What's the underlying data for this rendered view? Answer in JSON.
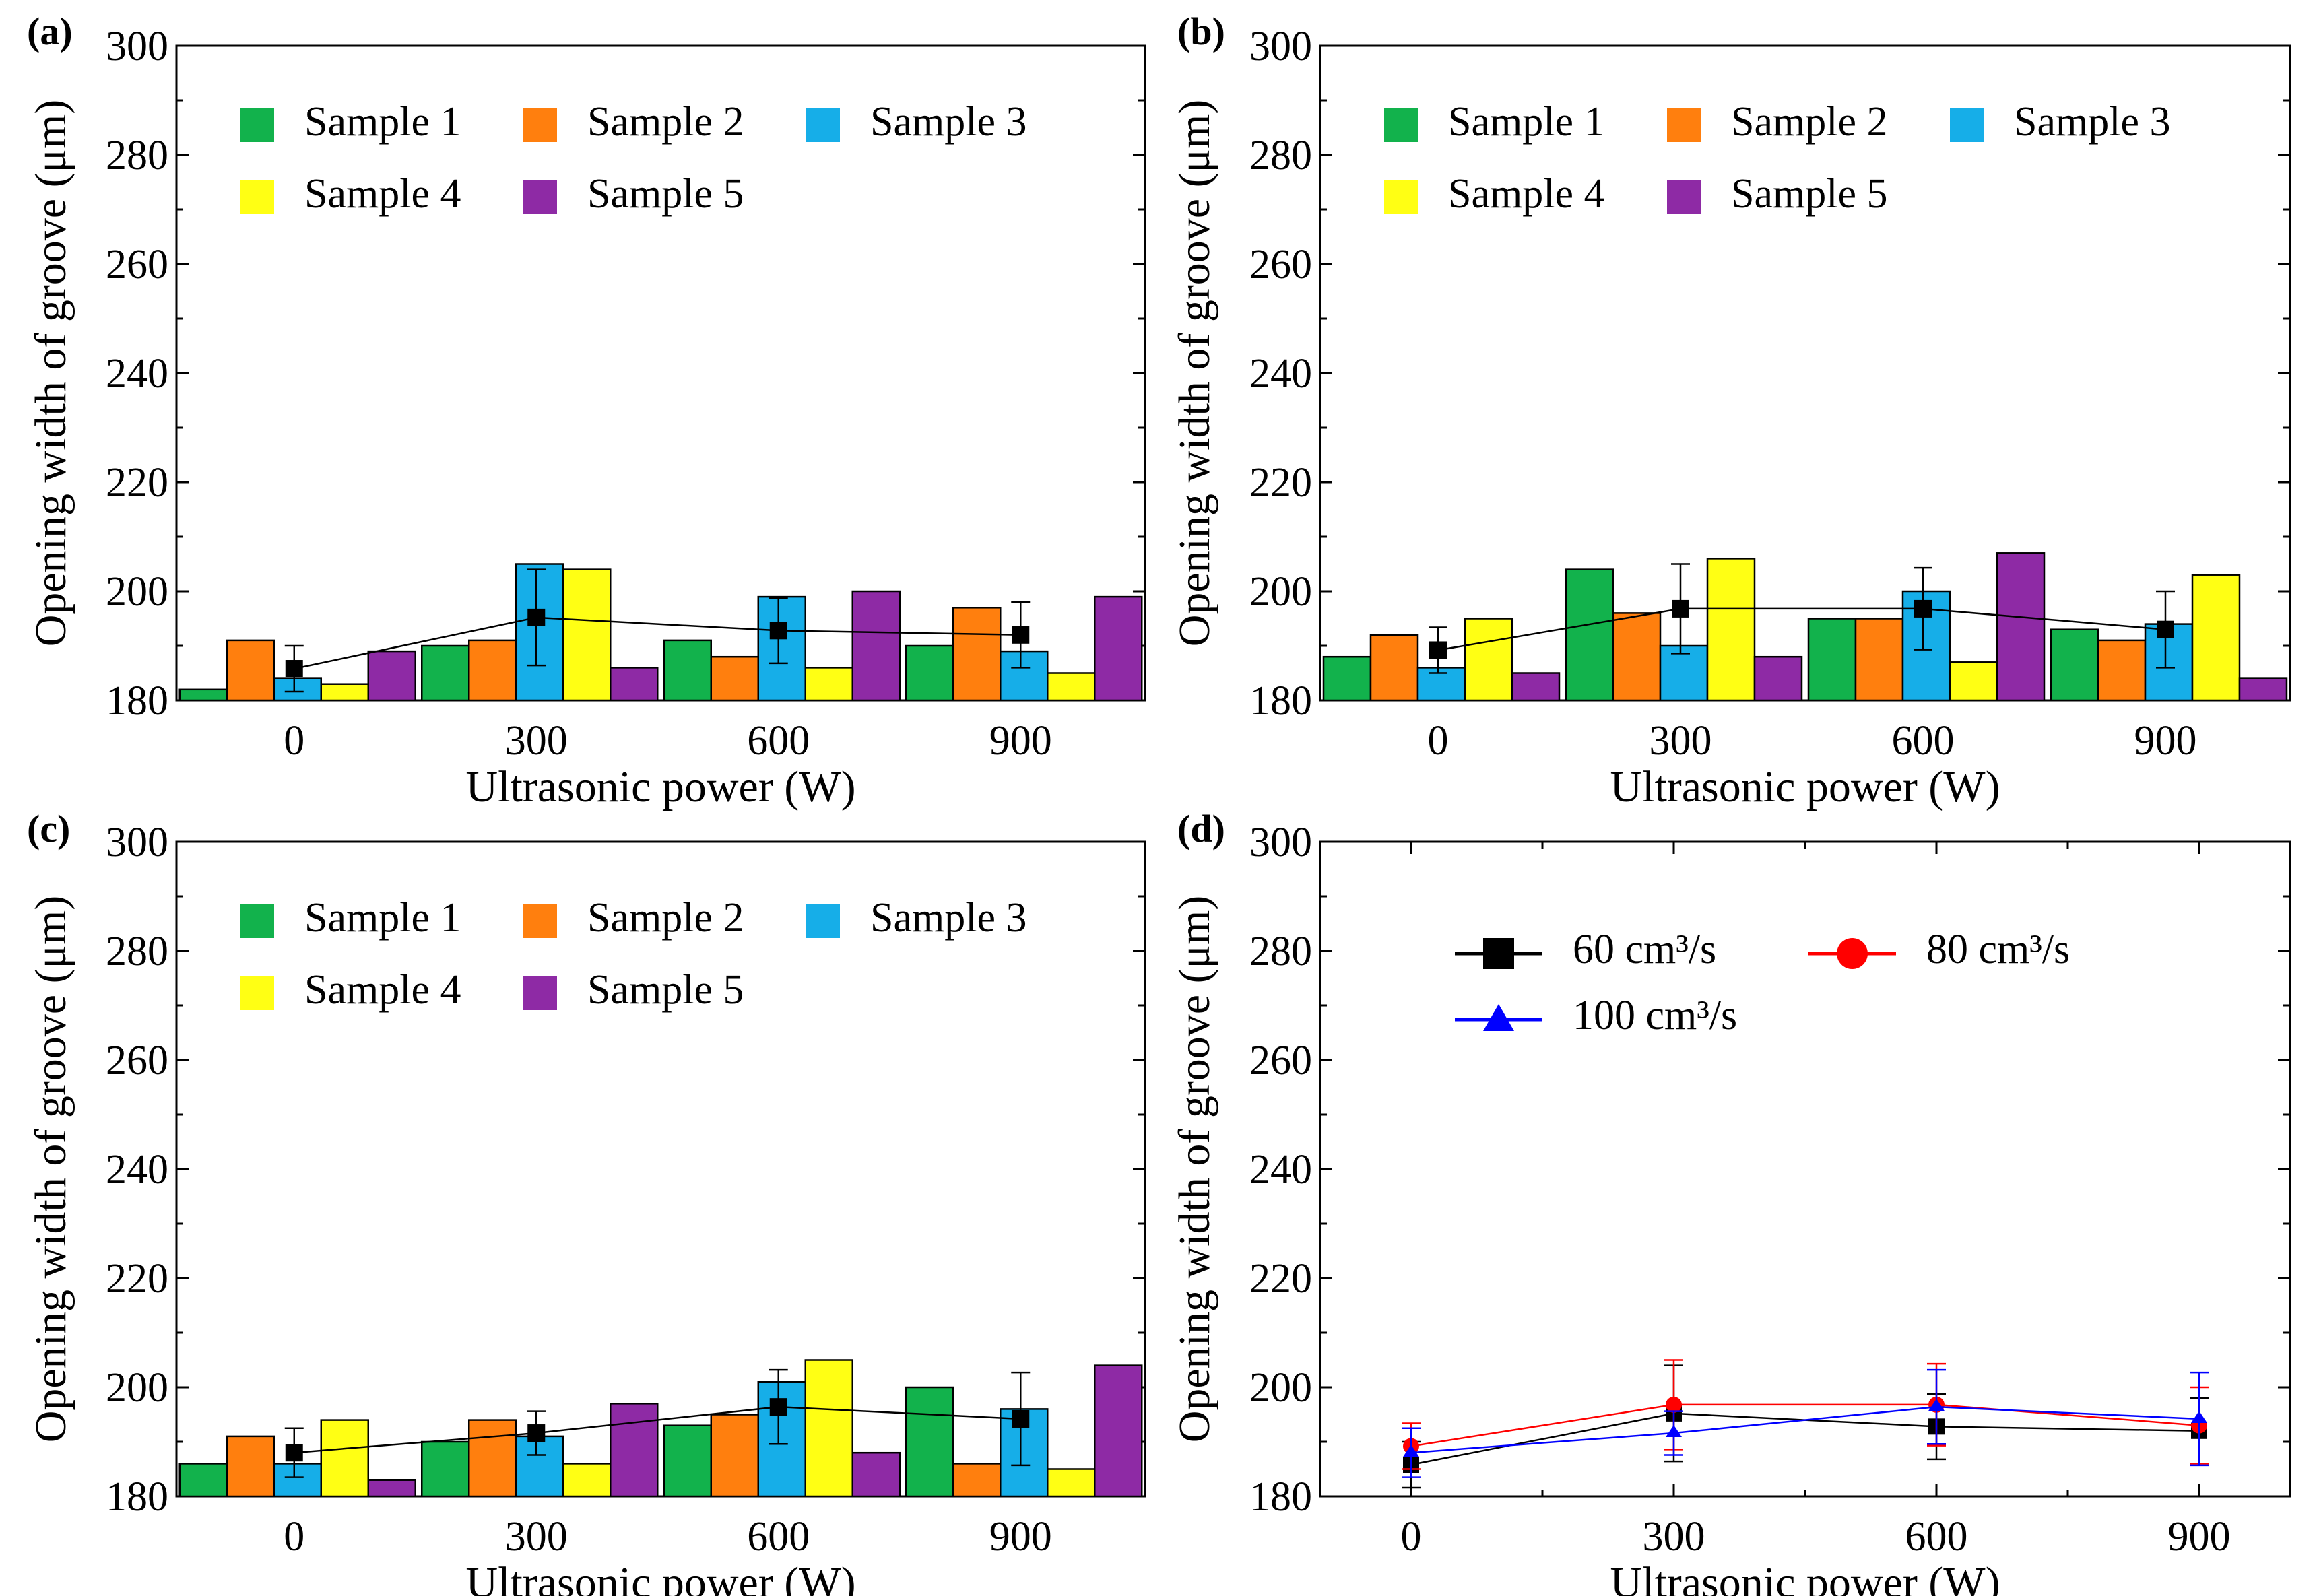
{
  "figure": {
    "panel_labels": [
      "(a)",
      "(b)",
      "(c)",
      "(d)"
    ]
  },
  "chart_data": [
    {
      "type": "bar",
      "panel": "(a)",
      "xlabel": "Ultrasonic power (W)",
      "ylabel": "Opening width of groove (μm)",
      "categories": [
        "0",
        "300",
        "600",
        "900"
      ],
      "ylim": [
        180,
        300
      ],
      "yticks": [
        180,
        200,
        220,
        240,
        260,
        280,
        300
      ],
      "series": [
        {
          "name": "Sample 1",
          "color": "#12b24c",
          "values": [
            182,
            190,
            191,
            190
          ]
        },
        {
          "name": "Sample 2",
          "color": "#ff7f0e",
          "values": [
            191,
            191,
            188,
            197
          ]
        },
        {
          "name": "Sample 3",
          "color": "#16aee8",
          "values": [
            184,
            205,
            199,
            189
          ]
        },
        {
          "name": "Sample 4",
          "color": "#ffff14",
          "values": [
            183,
            204,
            186,
            185
          ]
        },
        {
          "name": "Sample 5",
          "color": "#8e2aa5",
          "values": [
            189,
            186,
            200,
            199
          ]
        }
      ],
      "mean": [
        185.8,
        195.2,
        192.8,
        192.0
      ],
      "error": [
        4.2,
        8.8,
        6.0,
        6.0
      ]
    },
    {
      "type": "bar",
      "panel": "(b)",
      "xlabel": "Ultrasonic power (W)",
      "ylabel": "Opening width of groove (μm)",
      "categories": [
        "0",
        "300",
        "600",
        "900"
      ],
      "ylim": [
        180,
        300
      ],
      "yticks": [
        180,
        200,
        220,
        240,
        260,
        280,
        300
      ],
      "series": [
        {
          "name": "Sample 1",
          "color": "#12b24c",
          "values": [
            188,
            204,
            195,
            193
          ]
        },
        {
          "name": "Sample 2",
          "color": "#ff7f0e",
          "values": [
            192,
            196,
            195,
            191
          ]
        },
        {
          "name": "Sample 3",
          "color": "#16aee8",
          "values": [
            186,
            190,
            200,
            194
          ]
        },
        {
          "name": "Sample 4",
          "color": "#ffff14",
          "values": [
            195,
            206,
            187,
            203
          ]
        },
        {
          "name": "Sample 5",
          "color": "#8e2aa5",
          "values": [
            185,
            188,
            207,
            184
          ]
        }
      ],
      "mean": [
        189.2,
        196.8,
        196.8,
        193.0
      ],
      "error": [
        4.2,
        8.2,
        7.5,
        7.0
      ]
    },
    {
      "type": "bar",
      "panel": "(c)",
      "xlabel": "Ultrasonic power (W)",
      "ylabel": "Opening width of groove (μm)",
      "categories": [
        "0",
        "300",
        "600",
        "900"
      ],
      "ylim": [
        180,
        300
      ],
      "yticks": [
        180,
        200,
        220,
        240,
        260,
        280,
        300
      ],
      "series": [
        {
          "name": "Sample 1",
          "color": "#12b24c",
          "values": [
            186,
            190,
            193,
            200
          ]
        },
        {
          "name": "Sample 2",
          "color": "#ff7f0e",
          "values": [
            191,
            194,
            195,
            186
          ]
        },
        {
          "name": "Sample 3",
          "color": "#16aee8",
          "values": [
            186,
            191,
            201,
            196
          ]
        },
        {
          "name": "Sample 4",
          "color": "#ffff14",
          "values": [
            194,
            186,
            205,
            185
          ]
        },
        {
          "name": "Sample 5",
          "color": "#8e2aa5",
          "values": [
            183,
            197,
            188,
            204
          ]
        }
      ],
      "mean": [
        188.0,
        191.6,
        196.4,
        194.2
      ],
      "error": [
        4.5,
        4.0,
        6.8,
        8.5
      ]
    },
    {
      "type": "line",
      "panel": "(d)",
      "xlabel": "Ultrasonic power (W)",
      "ylabel": "Opening width of groove (μm)",
      "x": [
        0,
        300,
        600,
        900
      ],
      "xticks": [
        "0",
        "300",
        "600",
        "900"
      ],
      "ylim": [
        180,
        300
      ],
      "yticks": [
        180,
        200,
        220,
        240,
        260,
        280,
        300
      ],
      "series": [
        {
          "name": "60 cm³/s",
          "color": "#000000",
          "marker": "square",
          "values": [
            185.8,
            195.2,
            192.8,
            192.0
          ],
          "error": [
            4.2,
            8.8,
            6.0,
            6.0
          ]
        },
        {
          "name": "80 cm³/s",
          "color": "#ff0000",
          "marker": "circle",
          "values": [
            189.2,
            196.8,
            196.8,
            193.0
          ],
          "error": [
            4.2,
            8.2,
            7.5,
            7.0
          ]
        },
        {
          "name": "100 cm³/s",
          "color": "#0000ff",
          "marker": "triangle",
          "values": [
            188.0,
            191.6,
            196.4,
            194.2
          ],
          "error": [
            4.5,
            4.0,
            6.8,
            8.5
          ]
        }
      ]
    }
  ]
}
